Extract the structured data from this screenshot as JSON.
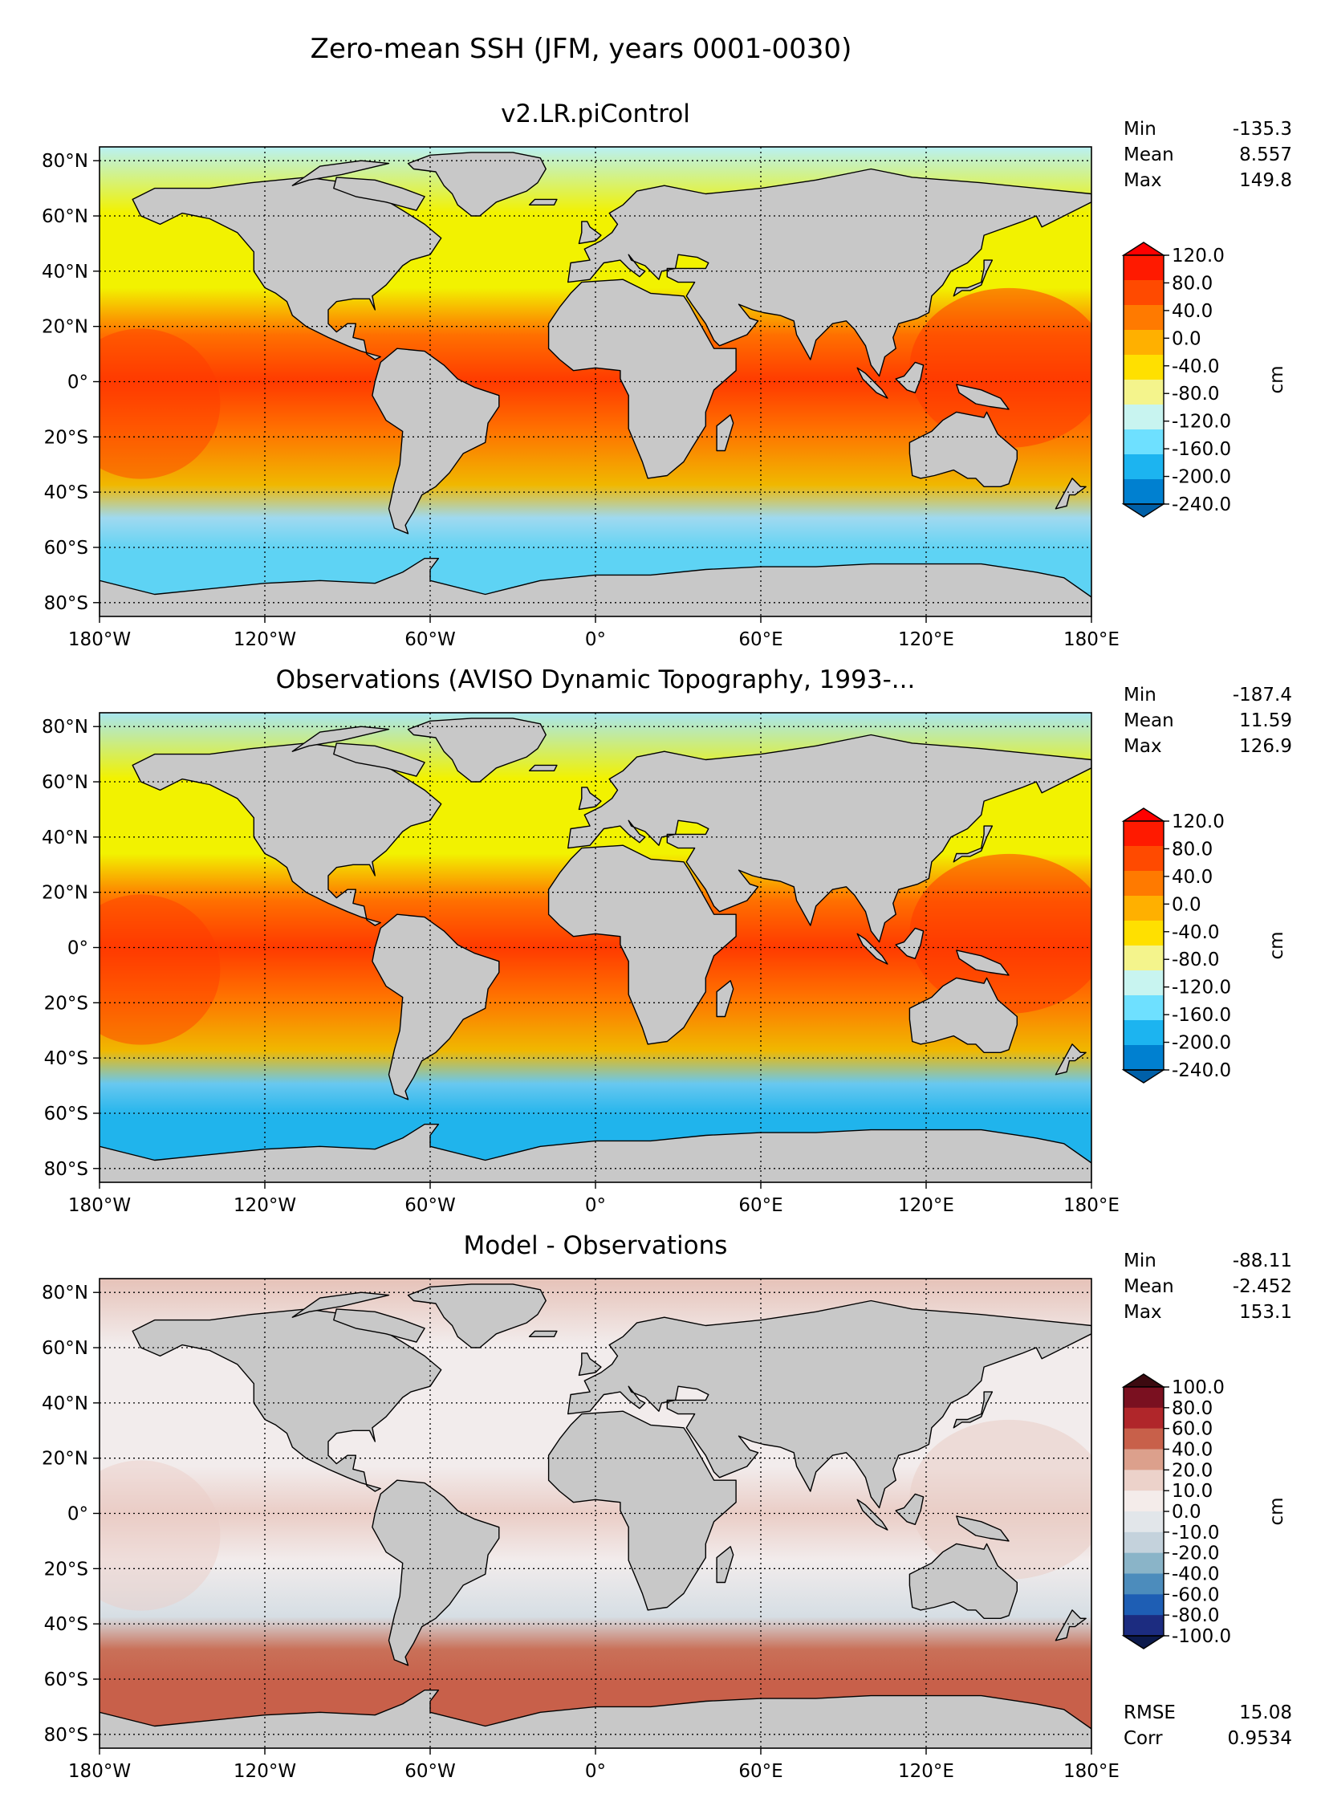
{
  "figure_title": "Zero-mean SSH (JFM, years 0001-0030)",
  "chart_data": [
    {
      "type": "heatmap",
      "title": "v2.LR.piControl",
      "lat_ticks": [
        "80°N",
        "60°N",
        "40°N",
        "20°N",
        "0°",
        "20°S",
        "40°S",
        "60°S",
        "80°S"
      ],
      "lon_ticks": [
        "180°W",
        "120°W",
        "60°W",
        "0°",
        "60°E",
        "120°E",
        "180°E"
      ],
      "xlim": [
        -180,
        180
      ],
      "ylim": [
        -85,
        85
      ],
      "stats": [
        {
          "label": "Min",
          "value": "-135.3"
        },
        {
          "label": "Mean",
          "value": "8.557"
        },
        {
          "label": "Max",
          "value": "149.8"
        }
      ],
      "colorbar": {
        "unit": "cm",
        "tick_labels": [
          "120.0",
          "80.0",
          "40.0",
          "0.0",
          "-40.0",
          "-80.0",
          "-120.0",
          "-160.0",
          "-200.0",
          "-240.0"
        ],
        "colors": [
          "#ff1a00",
          "#ff4a00",
          "#ff7a00",
          "#ffb000",
          "#ffe000",
          "#f4f48c",
          "#c8f4f0",
          "#6ee0ff",
          "#1cb4f0",
          "#0080d0"
        ],
        "extend": "both",
        "extend_low_color": "#0060a8",
        "extend_high_color": "#ff0000"
      },
      "basemap_colors": {
        "ocean_north": "#f2f200",
        "ocean_arctic": "#b9f1f4",
        "ocean_tropic": "#ff7000",
        "ocean_warm": "#ff3a00",
        "ocean_south": "#f0b800",
        "ocean_acc": "#9fd9f0",
        "ocean_antarctic": "#5ed3f4",
        "land": "#c8c8c8"
      }
    },
    {
      "type": "heatmap",
      "title": "Observations (AVISO Dynamic Topography, 1993-...",
      "lat_ticks": [
        "80°N",
        "60°N",
        "40°N",
        "20°N",
        "0°",
        "20°S",
        "40°S",
        "60°S",
        "80°S"
      ],
      "lon_ticks": [
        "180°W",
        "120°W",
        "60°W",
        "0°",
        "60°E",
        "120°E",
        "180°E"
      ],
      "xlim": [
        -180,
        180
      ],
      "ylim": [
        -85,
        85
      ],
      "stats": [
        {
          "label": "Min",
          "value": "-187.4"
        },
        {
          "label": "Mean",
          "value": "11.59"
        },
        {
          "label": "Max",
          "value": "126.9"
        }
      ],
      "colorbar": {
        "unit": "cm",
        "tick_labels": [
          "120.0",
          "80.0",
          "40.0",
          "0.0",
          "-40.0",
          "-80.0",
          "-120.0",
          "-160.0",
          "-200.0",
          "-240.0"
        ],
        "colors": [
          "#ff1a00",
          "#ff4a00",
          "#ff7a00",
          "#ffb000",
          "#ffe000",
          "#f4f48c",
          "#c8f4f0",
          "#6ee0ff",
          "#1cb4f0",
          "#0080d0"
        ],
        "extend": "both",
        "extend_low_color": "#0060a8",
        "extend_high_color": "#ff0000"
      },
      "basemap_colors": {
        "ocean_north": "#f2f200",
        "ocean_arctic": "#a8e6f0",
        "ocean_tropic": "#ff7000",
        "ocean_warm": "#ff3a00",
        "ocean_south": "#f0b800",
        "ocean_acc": "#68c8f0",
        "ocean_antarctic": "#20b4ec",
        "land": "#c8c8c8"
      }
    },
    {
      "type": "heatmap",
      "title": "Model - Observations",
      "lat_ticks": [
        "80°N",
        "60°N",
        "40°N",
        "20°N",
        "0°",
        "20°S",
        "40°S",
        "60°S",
        "80°S"
      ],
      "lon_ticks": [
        "180°W",
        "120°W",
        "60°W",
        "0°",
        "60°E",
        "120°E",
        "180°E"
      ],
      "xlim": [
        -180,
        180
      ],
      "ylim": [
        -85,
        85
      ],
      "stats": [
        {
          "label": "Min",
          "value": "-88.11"
        },
        {
          "label": "Mean",
          "value": "-2.452"
        },
        {
          "label": "Max",
          "value": "153.1"
        }
      ],
      "extra_stats": [
        {
          "label": "RMSE",
          "value": "15.08"
        },
        {
          "label": "Corr",
          "value": "0.9534"
        }
      ],
      "colorbar": {
        "unit": "cm",
        "tick_labels": [
          "100.0",
          "80.0",
          "60.0",
          "40.0",
          "20.0",
          "10.0",
          "0.0",
          "-10.0",
          "-20.0",
          "-40.0",
          "-60.0",
          "-80.0",
          "-100.0"
        ],
        "colors": [
          "#7a1020",
          "#b0262a",
          "#c8604a",
          "#dca08c",
          "#ecd2ca",
          "#f4ecea",
          "#e2e6ea",
          "#c4d2dc",
          "#8ab4c8",
          "#4c8cbc",
          "#1e5eb4",
          "#1c2c80"
        ],
        "extend": "both",
        "extend_low_color": "#0c1a4c",
        "extend_high_color": "#3c0a10"
      },
      "basemap_colors": {
        "ocean_north": "#f2ecec",
        "ocean_arctic": "#e6c2b8",
        "ocean_tropic": "#f2ecec",
        "ocean_warm": "#eacdc6",
        "ocean_south": "#d6dee4",
        "ocean_acc": "#c97058",
        "ocean_antarctic": "#c8604a",
        "land": "#c8c8c8"
      }
    }
  ]
}
